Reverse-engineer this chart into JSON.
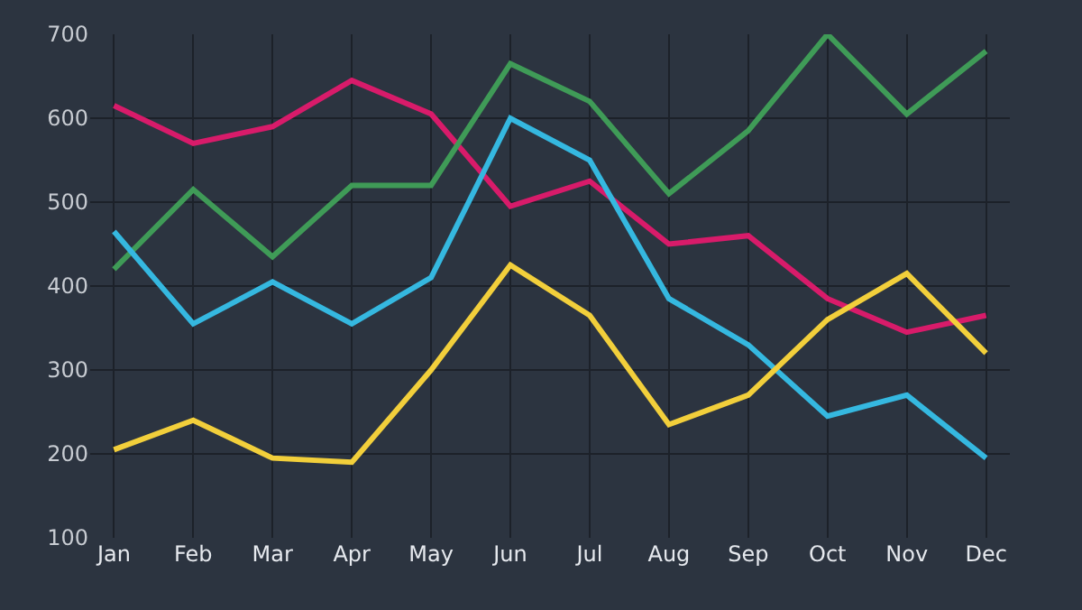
{
  "chart_data": {
    "type": "line",
    "categories": [
      "Jan",
      "Feb",
      "Mar",
      "Apr",
      "May",
      "Jun",
      "Jul",
      "Aug",
      "Sep",
      "Oct",
      "Nov",
      "Dec"
    ],
    "series": [
      {
        "color": "#d81b6a",
        "values": [
          615,
          570,
          590,
          645,
          605,
          495,
          525,
          450,
          460,
          385,
          345,
          365
        ]
      },
      {
        "color": "#3f9b57",
        "values": [
          420,
          515,
          435,
          520,
          520,
          665,
          620,
          510,
          585,
          700,
          605,
          680
        ]
      },
      {
        "color": "#35b8e0",
        "values": [
          465,
          355,
          405,
          355,
          410,
          600,
          550,
          385,
          330,
          245,
          270,
          195
        ]
      },
      {
        "color": "#f2cf3b",
        "values": [
          205,
          240,
          195,
          190,
          300,
          425,
          365,
          235,
          270,
          360,
          415,
          320
        ]
      }
    ],
    "ylim": [
      100,
      700
    ],
    "yticks": [
      100,
      200,
      300,
      400,
      500,
      600,
      700
    ],
    "grid": true,
    "legend": false
  }
}
